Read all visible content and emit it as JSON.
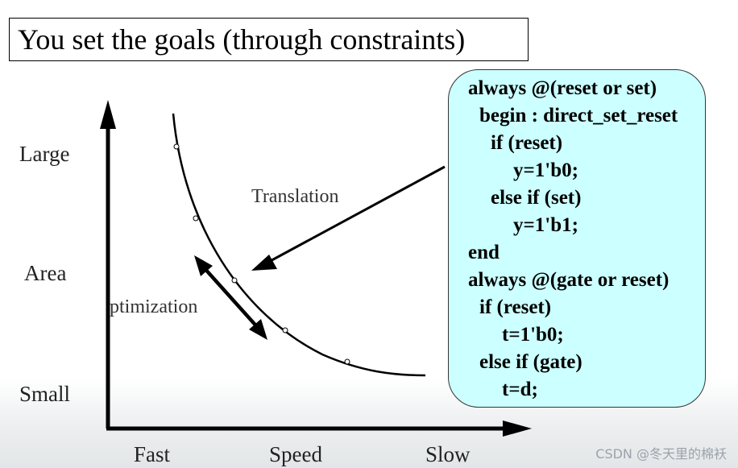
{
  "title": "You set the goals (through constraints)",
  "diagram": {
    "y_labels": {
      "large": "Large",
      "area": "Area",
      "small": "Small"
    },
    "x_labels": {
      "fast": "Fast",
      "speed": "Speed",
      "slow": "Slow"
    },
    "translation_label": "Translation",
    "optimization_label": "ptimization"
  },
  "code_lines": [
    "always @(reset or set)",
    "begin : direct_set_reset",
    "if (reset)",
    "y=1'b0;",
    "else if (set)",
    "y=1'b1;",
    "end",
    "always @(gate or reset)",
    "if (reset)",
    "t=1'b0;",
    "else if (gate)",
    "t=d;"
  ],
  "watermark": "CSDN @冬天里的棉袄",
  "colors": {
    "code_bg": "#ccffff",
    "line": "#000000"
  }
}
